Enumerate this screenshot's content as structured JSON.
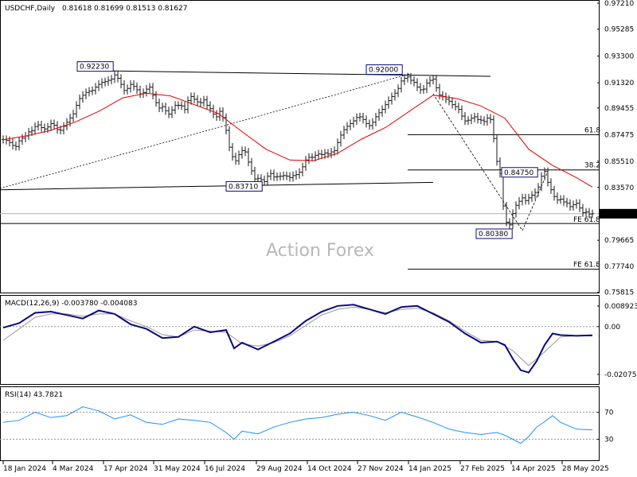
{
  "header": {
    "symbol": "USDCHF,Daily",
    "ohlc": "0.81618 0.81699 0.81513 0.81627"
  },
  "watermark": "Action Forex",
  "colors": {
    "price": "#1a1a1a",
    "sma": "#e00000",
    "macd": "#0a0a80",
    "signal": "#999999",
    "rsi": "#1e90ff",
    "levels": "#000000",
    "current_price_box": "#000000"
  },
  "chart_data": [
    {
      "type": "line",
      "panel": "price",
      "ylim": [
        0.7585,
        0.9721
      ],
      "y_ticks": [
        "0.97210",
        "0.95285",
        "0.93300",
        "0.91320",
        "0.89455",
        "0.87475",
        "0.85510",
        "0.83570",
        "0.81627",
        "0.79665",
        "0.77740",
        "0.75815"
      ],
      "x_ticks": [
        "18 Jan 2024",
        "4 Mar 2024",
        "17 Apr 2024",
        "31 May 2024",
        "16 Jul 2024",
        "29 Aug 2024",
        "14 Oct 2024",
        "27 Nov 2024",
        "14 Jan 2025",
        "27 Feb 2025",
        "14 Apr 2025",
        "28 May 2025"
      ],
      "current_price": "0.81627",
      "series": [
        {
          "role": "price-bars",
          "x": [
            0,
            4,
            8,
            12,
            16,
            20,
            24,
            28,
            32,
            36,
            40,
            44,
            48,
            52,
            56,
            60,
            64,
            68,
            72,
            76,
            80,
            84,
            88,
            92,
            96,
            100,
            104,
            108,
            112,
            116,
            120,
            124,
            128,
            132,
            136,
            140,
            144,
            148,
            152,
            156,
            160,
            164,
            168,
            172,
            176,
            180,
            184,
            188,
            192,
            196,
            200,
            204,
            208,
            212,
            216,
            220,
            224,
            228,
            232,
            236,
            240,
            244,
            248,
            252,
            256,
            260,
            264,
            268,
            272,
            276,
            280,
            284,
            288,
            292,
            296,
            300,
            304,
            308,
            312,
            316,
            320,
            324,
            328,
            332,
            336,
            340,
            344,
            348,
            352,
            356,
            360,
            364,
            368,
            372,
            376,
            380,
            384,
            388,
            392,
            396,
            400,
            404,
            408,
            412,
            416,
            420,
            424,
            428,
            432,
            436,
            440,
            444,
            448,
            452,
            456,
            460,
            464,
            468,
            472,
            476,
            480,
            484,
            488,
            492,
            496,
            500,
            504,
            508,
            512,
            516,
            520,
            524,
            528,
            532,
            536,
            540,
            544,
            548,
            552,
            556,
            560,
            564,
            568,
            572,
            576,
            580,
            584,
            588,
            592,
            596,
            600,
            604,
            608,
            612,
            616,
            620,
            624,
            628,
            632,
            636,
            640,
            644,
            648,
            652,
            656,
            660,
            664,
            668,
            672,
            676,
            680,
            684,
            688,
            692,
            696,
            700,
            704,
            708,
            712,
            716,
            720,
            724,
            728,
            732,
            736,
            740
          ],
          "values": [
            0.8712,
            0.8705,
            0.869,
            0.8668,
            0.866,
            0.8702,
            0.8722,
            0.8738,
            0.8768,
            0.8778,
            0.8808,
            0.882,
            0.88,
            0.879,
            0.8805,
            0.883,
            0.8818,
            0.8785,
            0.878,
            0.881,
            0.884,
            0.8872,
            0.8902,
            0.8965,
            0.9015,
            0.904,
            0.906,
            0.907,
            0.9075,
            0.91,
            0.912,
            0.9135,
            0.914,
            0.915,
            0.916,
            0.919,
            0.9165,
            0.912,
            0.9075,
            0.909,
            0.912,
            0.9105,
            0.908,
            0.905,
            0.906,
            0.9085,
            0.91,
            0.904,
            0.8985,
            0.8945,
            0.8955,
            0.8925,
            0.89,
            0.893,
            0.8965,
            0.8965,
            0.896,
            0.8935,
            0.9,
            0.903,
            0.901,
            0.899,
            0.8985,
            0.9005,
            0.8965,
            0.894,
            0.89,
            0.888,
            0.892,
            0.8875,
            0.878,
            0.8655,
            0.8585,
            0.8555,
            0.86,
            0.863,
            0.862,
            0.8545,
            0.848,
            0.842,
            0.8425,
            0.8415,
            0.84,
            0.844,
            0.846,
            0.8435,
            0.8438,
            0.844,
            0.8445,
            0.844,
            0.843,
            0.8445,
            0.8452,
            0.847,
            0.851,
            0.856,
            0.858,
            0.858,
            0.8595,
            0.8605,
            0.86,
            0.8612,
            0.8605,
            0.862,
            0.863,
            0.869,
            0.8745,
            0.8785,
            0.881,
            0.883,
            0.885,
            0.8875,
            0.888,
            0.886,
            0.883,
            0.8815,
            0.884,
            0.888,
            0.891,
            0.8935,
            0.897,
            0.9,
            0.903,
            0.9055,
            0.909,
            0.9145,
            0.9165,
            0.9175,
            0.915,
            0.9135,
            0.91,
            0.908,
            0.9085,
            0.913,
            0.915,
            0.916,
            0.9095,
            0.904,
            0.903,
            0.901,
            0.8995,
            0.897,
            0.8955,
            0.8935,
            0.8885,
            0.885,
            0.8855,
            0.887,
            0.888,
            0.886,
            0.8855,
            0.8845,
            0.887,
            0.886,
            0.872,
            0.855,
            0.846,
            0.822,
            0.81,
            0.808,
            0.8165,
            0.8225,
            0.8255,
            0.828,
            0.826,
            0.828,
            0.83,
            0.832,
            0.836,
            0.844,
            0.8475,
            0.8395,
            0.834,
            0.829,
            0.8265,
            0.827,
            0.825,
            0.824,
            0.8215,
            0.823,
            0.824,
            0.8205,
            0.817,
            0.8175,
            0.816,
            0.8163
          ]
        },
        {
          "role": "moving-average",
          "x": [
            0,
            30,
            60,
            90,
            120,
            150,
            180,
            210,
            240,
            270,
            300,
            330,
            360,
            390,
            420,
            450,
            480,
            510,
            540,
            570,
            600,
            630,
            660,
            690,
            720,
            740
          ],
          "values": [
            0.871,
            0.874,
            0.878,
            0.884,
            0.892,
            0.902,
            0.9055,
            0.9035,
            0.897,
            0.8905,
            0.877,
            0.864,
            0.856,
            0.8555,
            0.861,
            0.8715,
            0.88,
            0.892,
            0.904,
            0.9015,
            0.896,
            0.887,
            0.864,
            0.852,
            0.843,
            0.836
          ]
        }
      ],
      "annotations": [
        {
          "label": "0.92230",
          "value": 0.9223
        },
        {
          "label": "0.92000",
          "value": 0.92
        },
        {
          "label": "0.83710",
          "value": 0.8371
        },
        {
          "label": "0.84750",
          "value": 0.8475
        },
        {
          "label": "0.80380",
          "value": 0.8038
        },
        {
          "label": "61.8",
          "value": 0.8748
        },
        {
          "label": "38.2",
          "value": 0.8487
        },
        {
          "label": "FE 61.8",
          "value": 0.809
        },
        {
          "label": "FE 61.8",
          "value": 0.7752
        }
      ]
    },
    {
      "type": "line",
      "panel": "macd",
      "title": "MACD(12,26,9) -0.003780 -0.004083",
      "ylim": [
        -0.0236,
        0.011
      ],
      "y_ticks": [
        "0.008923",
        "0.00",
        "-0.020759"
      ],
      "series": [
        {
          "role": "macd-line",
          "x": [
            0,
            20,
            40,
            60,
            80,
            100,
            120,
            140,
            160,
            180,
            200,
            220,
            240,
            260,
            280,
            290,
            300,
            320,
            340,
            360,
            380,
            400,
            420,
            440,
            460,
            480,
            500,
            520,
            540,
            560,
            580,
            600,
            620,
            630,
            640,
            650,
            660,
            670,
            680,
            690,
            700,
            720,
            740
          ],
          "values": [
            -0.0005,
            0.0015,
            0.006,
            0.0065,
            0.005,
            0.0035,
            0.007,
            0.0055,
            0.001,
            -0.001,
            -0.005,
            -0.0045,
            0.0,
            -0.0025,
            -0.0015,
            -0.0095,
            -0.007,
            -0.01,
            -0.0065,
            -0.003,
            0.0025,
            0.0065,
            0.009,
            0.0095,
            0.0075,
            0.0055,
            0.0085,
            0.009,
            0.0055,
            0.002,
            -0.003,
            -0.007,
            -0.0065,
            -0.008,
            -0.014,
            -0.019,
            -0.02,
            -0.015,
            -0.008,
            -0.003,
            -0.0037,
            -0.004,
            -0.0038
          ]
        },
        {
          "role": "signal-line",
          "x": [
            0,
            20,
            40,
            60,
            80,
            100,
            120,
            140,
            160,
            180,
            200,
            220,
            240,
            260,
            280,
            300,
            320,
            340,
            360,
            380,
            400,
            420,
            440,
            460,
            480,
            500,
            520,
            540,
            560,
            580,
            600,
            620,
            640,
            660,
            680,
            700,
            720,
            740
          ],
          "values": [
            -0.006,
            -0.001,
            0.004,
            0.0055,
            0.0055,
            0.0045,
            0.0055,
            0.0055,
            0.0025,
            0.0,
            -0.0035,
            -0.0045,
            -0.0015,
            -0.002,
            -0.0025,
            -0.0075,
            -0.0085,
            -0.007,
            -0.004,
            0.0005,
            0.005,
            0.0075,
            0.0085,
            0.0075,
            0.006,
            0.0075,
            0.008,
            0.006,
            0.0025,
            -0.002,
            -0.006,
            -0.0065,
            -0.0105,
            -0.017,
            -0.011,
            -0.0045,
            -0.004,
            -0.0041
          ]
        }
      ]
    },
    {
      "type": "line",
      "panel": "rsi",
      "title": "RSI(14) 43.7821",
      "ylim": [
        0,
        100
      ],
      "y_ticks": [
        "70",
        "30"
      ],
      "series": [
        {
          "role": "rsi",
          "x": [
            0,
            20,
            40,
            60,
            80,
            100,
            120,
            140,
            160,
            180,
            200,
            220,
            240,
            260,
            280,
            290,
            300,
            320,
            340,
            360,
            380,
            400,
            420,
            440,
            460,
            480,
            500,
            520,
            540,
            560,
            580,
            600,
            620,
            630,
            640,
            650,
            660,
            670,
            680,
            690,
            700,
            720,
            740
          ],
          "values": [
            55,
            58,
            70,
            62,
            65,
            78,
            72,
            60,
            66,
            55,
            52,
            60,
            58,
            55,
            40,
            30,
            42,
            38,
            48,
            55,
            60,
            62,
            67,
            70,
            65,
            58,
            70,
            63,
            55,
            45,
            40,
            37,
            40,
            36,
            30,
            24,
            34,
            48,
            56,
            65,
            55,
            45,
            43.78
          ]
        }
      ]
    }
  ]
}
